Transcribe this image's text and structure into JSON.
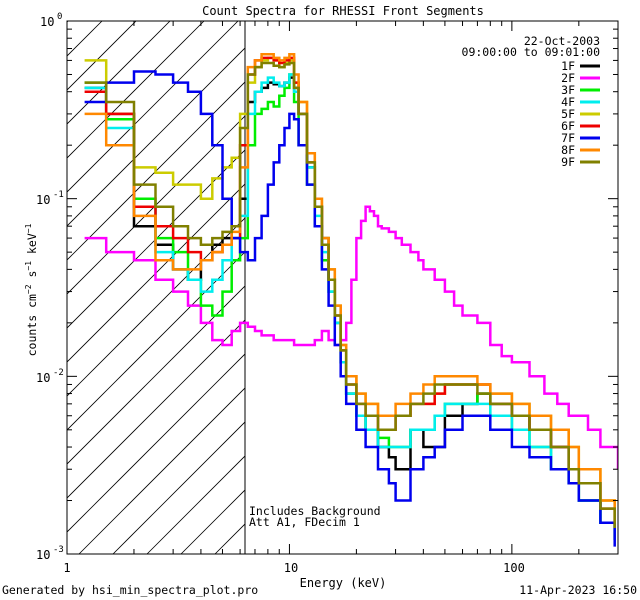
{
  "chart_data": {
    "type": "line",
    "title": "Count Spectra for RHESSI Front Segments",
    "xlabel": "Energy (keV)",
    "ylabel": "counts cm-2 s-1 keV-1",
    "xscale": "log",
    "yscale": "log",
    "xlim": [
      1,
      300
    ],
    "ylim": [
      0.001,
      1
    ],
    "x_ticks": [
      "1",
      "10",
      "100"
    ],
    "y_ticks": [
      "10-3",
      "10-2",
      "10-1",
      "100"
    ],
    "date": "22-Oct-2003",
    "time_range": "09:00:00 to 09:01:00",
    "annotations": [
      "Includes Background",
      "Att A1, FDecim 1"
    ],
    "hatched_region_keV": [
      1,
      6
    ],
    "footer_left": "Generated by hsi_min_spectra_plot.pro",
    "footer_right": "11-Apr-2023 16:50",
    "series": [
      {
        "name": "1F",
        "color": "#000000",
        "x": [
          1.2,
          1.5,
          2,
          2.5,
          3,
          3.5,
          4,
          4.5,
          5,
          5.5,
          6,
          6.5,
          7,
          7.5,
          8,
          8.5,
          9,
          9.5,
          10,
          10.5,
          11,
          12,
          13,
          14,
          15,
          16,
          17,
          18,
          20,
          22,
          25,
          28,
          30,
          35,
          40,
          45,
          50,
          60,
          70,
          80,
          100,
          120,
          150,
          180,
          200,
          250,
          290
        ],
        "y": [
          0.42,
          0.3,
          0.07,
          0.055,
          0.04,
          0.035,
          0.045,
          0.055,
          0.06,
          0.07,
          0.1,
          0.35,
          0.4,
          0.42,
          0.45,
          0.44,
          0.43,
          0.45,
          0.48,
          0.42,
          0.3,
          0.15,
          0.09,
          0.06,
          0.035,
          0.02,
          0.012,
          0.008,
          0.006,
          0.005,
          0.004,
          0.0035,
          0.003,
          0.005,
          0.004,
          0.004,
          0.006,
          0.007,
          0.008,
          0.007,
          0.006,
          0.005,
          0.004,
          0.003,
          0.002,
          0.0015,
          0.0012
        ]
      },
      {
        "name": "2F",
        "color": "#ff00ff",
        "x": [
          1.2,
          1.5,
          2,
          2.5,
          3,
          3.5,
          4,
          4.5,
          5,
          5.5,
          6,
          6.5,
          7,
          7.5,
          8,
          8.5,
          9,
          9.5,
          10,
          10.5,
          11,
          12,
          13,
          14,
          15,
          16,
          17,
          18,
          19,
          20,
          21,
          22,
          23,
          24,
          25,
          26,
          28,
          30,
          32,
          35,
          38,
          40,
          45,
          50,
          55,
          60,
          70,
          80,
          90,
          100,
          120,
          140,
          160,
          180,
          200,
          220,
          250,
          280,
          300
        ],
        "y": [
          0.06,
          0.05,
          0.045,
          0.035,
          0.03,
          0.025,
          0.02,
          0.016,
          0.015,
          0.018,
          0.02,
          0.019,
          0.018,
          0.017,
          0.017,
          0.016,
          0.016,
          0.016,
          0.016,
          0.015,
          0.015,
          0.015,
          0.016,
          0.018,
          0.016,
          0.015,
          0.016,
          0.02,
          0.035,
          0.06,
          0.075,
          0.09,
          0.085,
          0.08,
          0.07,
          0.068,
          0.065,
          0.06,
          0.055,
          0.05,
          0.045,
          0.04,
          0.035,
          0.03,
          0.025,
          0.022,
          0.02,
          0.015,
          0.013,
          0.012,
          0.01,
          0.008,
          0.007,
          0.006,
          0.006,
          0.005,
          0.004,
          0.004,
          0.003
        ]
      },
      {
        "name": "3F",
        "color": "#00ee00",
        "x": [
          1.2,
          1.5,
          2,
          2.5,
          3,
          3.5,
          4,
          4.5,
          5,
          5.5,
          6,
          6.5,
          7,
          7.5,
          8,
          8.5,
          9,
          9.5,
          10,
          10.5,
          11,
          12,
          13,
          14,
          15,
          16,
          17,
          18,
          20,
          22,
          25,
          28,
          30,
          35,
          40,
          45,
          50,
          60,
          70,
          80,
          100,
          120,
          150,
          180,
          200,
          250,
          290
        ],
        "y": [
          0.45,
          0.28,
          0.1,
          0.06,
          0.05,
          0.035,
          0.025,
          0.022,
          0.03,
          0.045,
          0.06,
          0.2,
          0.3,
          0.32,
          0.35,
          0.33,
          0.38,
          0.42,
          0.5,
          0.35,
          0.2,
          0.12,
          0.07,
          0.045,
          0.03,
          0.02,
          0.012,
          0.008,
          0.006,
          0.005,
          0.0045,
          0.004,
          0.004,
          0.005,
          0.005,
          0.006,
          0.007,
          0.007,
          0.008,
          0.006,
          0.005,
          0.004,
          0.003,
          0.0025,
          0.002,
          0.0015,
          0.0012
        ]
      },
      {
        "name": "4F",
        "color": "#00eeee",
        "x": [
          1.2,
          1.5,
          2,
          2.5,
          3,
          3.5,
          4,
          4.5,
          5,
          5.5,
          6,
          6.5,
          7,
          7.5,
          8,
          8.5,
          9,
          9.5,
          10,
          10.5,
          11,
          12,
          13,
          14,
          15,
          16,
          17,
          18,
          20,
          22,
          25,
          28,
          30,
          35,
          40,
          45,
          50,
          60,
          70,
          80,
          100,
          120,
          150,
          180,
          200,
          250,
          290
        ],
        "y": [
          0.42,
          0.25,
          0.09,
          0.05,
          0.04,
          0.035,
          0.03,
          0.035,
          0.045,
          0.06,
          0.08,
          0.3,
          0.4,
          0.45,
          0.48,
          0.45,
          0.43,
          0.45,
          0.5,
          0.4,
          0.3,
          0.15,
          0.08,
          0.05,
          0.03,
          0.02,
          0.012,
          0.008,
          0.006,
          0.005,
          0.004,
          0.004,
          0.004,
          0.005,
          0.005,
          0.006,
          0.007,
          0.007,
          0.007,
          0.006,
          0.005,
          0.004,
          0.003,
          0.0025,
          0.002,
          0.0015,
          0.0012
        ]
      },
      {
        "name": "5F",
        "color": "#cccc00",
        "x": [
          1.2,
          1.5,
          2,
          2.5,
          3,
          3.5,
          4,
          4.5,
          5,
          5.5,
          6,
          6.5,
          7,
          7.5,
          8,
          8.5,
          9,
          9.5,
          10,
          10.5,
          11,
          12,
          13,
          14,
          15,
          16,
          17,
          18,
          20,
          22,
          25,
          28,
          30,
          35,
          40,
          45,
          50,
          60,
          70,
          80,
          100,
          120,
          150,
          180,
          200,
          250,
          290
        ],
        "y": [
          0.6,
          0.3,
          0.15,
          0.14,
          0.12,
          0.12,
          0.1,
          0.13,
          0.15,
          0.17,
          0.3,
          0.45,
          0.55,
          0.6,
          0.62,
          0.6,
          0.55,
          0.58,
          0.6,
          0.45,
          0.35,
          0.18,
          0.1,
          0.06,
          0.04,
          0.025,
          0.015,
          0.01,
          0.008,
          0.007,
          0.006,
          0.006,
          0.006,
          0.007,
          0.007,
          0.008,
          0.009,
          0.009,
          0.009,
          0.008,
          0.007,
          0.006,
          0.005,
          0.004,
          0.003,
          0.002,
          0.0015
        ]
      },
      {
        "name": "6F",
        "color": "#ee0000",
        "x": [
          1.2,
          1.5,
          2,
          2.5,
          3,
          3.5,
          4,
          4.5,
          5,
          5.5,
          6,
          6.5,
          7,
          7.5,
          8,
          8.5,
          9,
          9.5,
          10,
          10.5,
          11,
          12,
          13,
          14,
          15,
          16,
          17,
          18,
          20,
          22,
          25,
          28,
          30,
          35,
          40,
          45,
          50,
          60,
          70,
          80,
          100,
          120,
          150,
          180,
          200,
          250,
          290
        ],
        "y": [
          0.4,
          0.3,
          0.09,
          0.07,
          0.06,
          0.05,
          0.045,
          0.05,
          0.055,
          0.06,
          0.2,
          0.5,
          0.6,
          0.62,
          0.62,
          0.6,
          0.58,
          0.6,
          0.62,
          0.45,
          0.3,
          0.16,
          0.09,
          0.055,
          0.035,
          0.022,
          0.014,
          0.009,
          0.007,
          0.006,
          0.005,
          0.005,
          0.006,
          0.007,
          0.007,
          0.008,
          0.009,
          0.009,
          0.009,
          0.007,
          0.006,
          0.005,
          0.004,
          0.003,
          0.0025,
          0.0018,
          0.0014
        ]
      },
      {
        "name": "7F",
        "color": "#0000ee",
        "x": [
          1.2,
          1.5,
          2,
          2.5,
          3,
          3.5,
          4,
          4.5,
          5,
          5.5,
          6,
          6.5,
          7,
          7.5,
          8,
          8.5,
          9,
          9.5,
          10,
          10.5,
          11,
          12,
          13,
          14,
          15,
          16,
          17,
          18,
          20,
          22,
          25,
          28,
          30,
          35,
          40,
          45,
          50,
          60,
          70,
          80,
          100,
          120,
          150,
          180,
          200,
          250,
          290
        ],
        "y": [
          0.35,
          0.45,
          0.52,
          0.5,
          0.45,
          0.4,
          0.3,
          0.2,
          0.1,
          0.06,
          0.05,
          0.045,
          0.06,
          0.08,
          0.12,
          0.16,
          0.2,
          0.25,
          0.3,
          0.28,
          0.2,
          0.12,
          0.07,
          0.04,
          0.025,
          0.015,
          0.01,
          0.007,
          0.005,
          0.004,
          0.003,
          0.0025,
          0.002,
          0.003,
          0.0035,
          0.004,
          0.005,
          0.006,
          0.006,
          0.005,
          0.004,
          0.0035,
          0.003,
          0.0025,
          0.002,
          0.0015,
          0.0011
        ]
      },
      {
        "name": "8F",
        "color": "#ff8800",
        "x": [
          1.2,
          1.5,
          2,
          2.5,
          3,
          3.5,
          4,
          4.5,
          5,
          5.5,
          6,
          6.5,
          7,
          7.5,
          8,
          8.5,
          9,
          9.5,
          10,
          10.5,
          11,
          12,
          13,
          14,
          15,
          16,
          17,
          18,
          20,
          22,
          25,
          28,
          30,
          35,
          40,
          45,
          50,
          60,
          70,
          80,
          100,
          120,
          150,
          180,
          200,
          250,
          290
        ],
        "y": [
          0.3,
          0.2,
          0.08,
          0.045,
          0.04,
          0.04,
          0.045,
          0.05,
          0.055,
          0.065,
          0.15,
          0.55,
          0.6,
          0.65,
          0.65,
          0.62,
          0.6,
          0.62,
          0.65,
          0.5,
          0.35,
          0.18,
          0.1,
          0.06,
          0.04,
          0.025,
          0.015,
          0.01,
          0.008,
          0.007,
          0.006,
          0.006,
          0.007,
          0.008,
          0.009,
          0.01,
          0.01,
          0.01,
          0.009,
          0.008,
          0.007,
          0.006,
          0.005,
          0.004,
          0.003,
          0.002,
          0.0015
        ]
      },
      {
        "name": "9F",
        "color": "#808000",
        "x": [
          1.2,
          1.5,
          2,
          2.5,
          3,
          3.5,
          4,
          4.5,
          5,
          5.5,
          6,
          6.5,
          7,
          7.5,
          8,
          8.5,
          9,
          9.5,
          10,
          10.5,
          11,
          12,
          13,
          14,
          15,
          16,
          17,
          18,
          20,
          22,
          25,
          28,
          30,
          35,
          40,
          45,
          50,
          60,
          70,
          80,
          100,
          120,
          150,
          180,
          200,
          250,
          290
        ],
        "y": [
          0.45,
          0.35,
          0.12,
          0.09,
          0.07,
          0.06,
          0.055,
          0.06,
          0.065,
          0.07,
          0.25,
          0.5,
          0.55,
          0.58,
          0.58,
          0.56,
          0.55,
          0.57,
          0.58,
          0.42,
          0.3,
          0.16,
          0.09,
          0.055,
          0.035,
          0.022,
          0.014,
          0.009,
          0.007,
          0.006,
          0.005,
          0.005,
          0.006,
          0.007,
          0.008,
          0.009,
          0.009,
          0.009,
          0.008,
          0.007,
          0.006,
          0.005,
          0.004,
          0.003,
          0.0025,
          0.0018,
          0.0014
        ]
      }
    ]
  }
}
